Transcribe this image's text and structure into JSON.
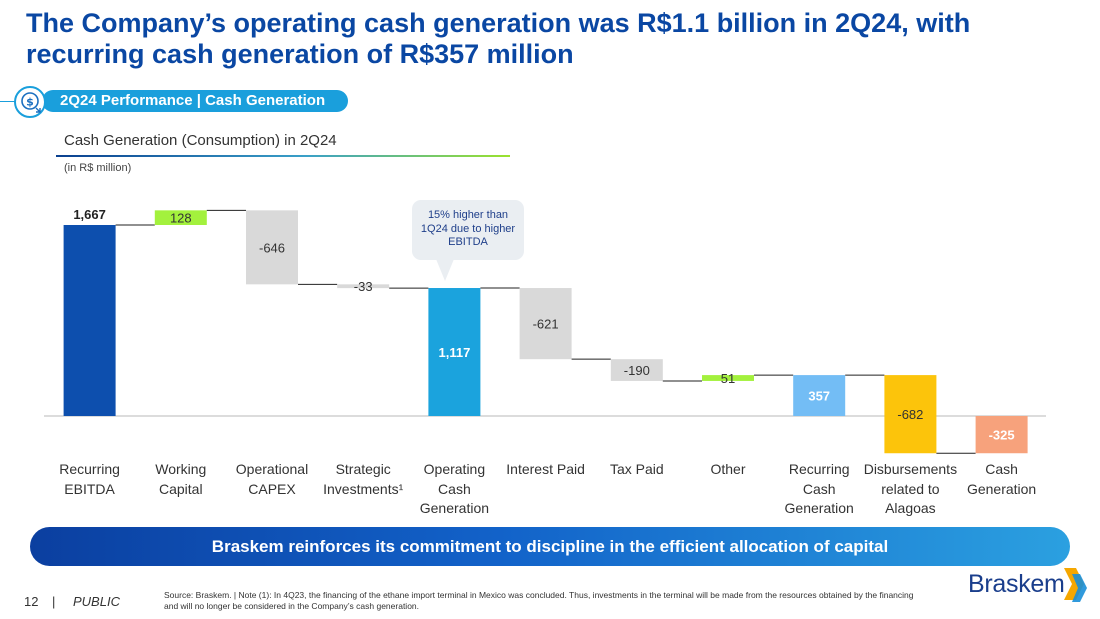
{
  "header": {
    "title": "The Company’s operating cash generation was R$1.1 billion in 2Q24, with recurring cash generation of R$357 million"
  },
  "section": {
    "label": "2Q24 Performance | Cash Generation",
    "icon": "dollar-cycle-icon"
  },
  "chart_data": {
    "type": "waterfall",
    "title": "Cash Generation (Consumption) in 2Q24",
    "unit_note": "(in R$ million)",
    "categories": [
      "Recurring EBITDA",
      "Working Capital",
      "Operational CAPEX",
      "Strategic Investments¹",
      "Operating Cash Generation",
      "Interest Paid",
      "Tax Paid",
      "Other",
      "Recurring Cash Generation",
      "Disbursements related to Alagoas",
      "Cash Generation"
    ],
    "values": [
      1667,
      128,
      -646,
      -33,
      1117,
      -621,
      -190,
      51,
      357,
      -682,
      -325
    ],
    "value_labels": [
      "1,667",
      "128",
      "-646",
      "-33",
      "1,117",
      "-621",
      "-190",
      "51",
      "357",
      "-682",
      "-325"
    ],
    "kinds": [
      "total",
      "delta",
      "delta",
      "delta",
      "total",
      "delta",
      "delta",
      "delta",
      "total",
      "delta",
      "total"
    ],
    "colors": [
      "#0d4fae",
      "#a3f13d",
      "#d9d9d9",
      "#d9d9d9",
      "#1ba3dd",
      "#d9d9d9",
      "#d9d9d9",
      "#a3f13d",
      "#73bdf5",
      "#fcc40b",
      "#f7a27c"
    ],
    "annotation": "15% higher than 1Q24 due to higher EBITDA"
  },
  "banner": {
    "text": "Braskem reinforces its commitment to discipline in the efficient allocation of capital"
  },
  "footer": {
    "page_number": "12",
    "separator": "|",
    "classification": "PUBLIC",
    "source_note": "Source: Braskem. | Note (1): In 4Q23, the financing of the ethane import terminal in Mexico was concluded. Thus, investments in the terminal will be made from the resources obtained by the financing and will no longer be considered in the Company’s cash generation.",
    "logo_text": "Braskem"
  }
}
